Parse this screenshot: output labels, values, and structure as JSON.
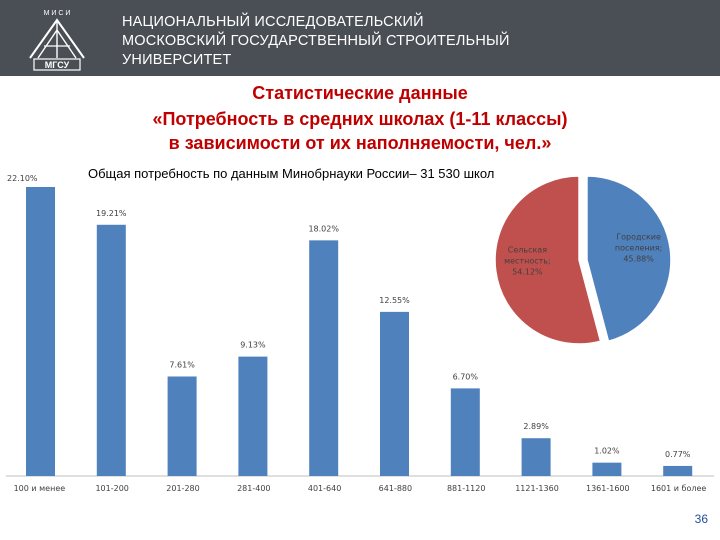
{
  "header": {
    "lines": [
      "НАЦИОНАЛЬНЫЙ ИССЛЕДОВАТЕЛЬСКИЙ",
      "МОСКОВСКИЙ ГОСУДАРСТВЕННЫЙ СТРОИТЕЛЬНЫЙ",
      "УНИВЕРСИТЕТ"
    ],
    "logo_letters": "М И С И",
    "logo_text": "МГСУ"
  },
  "title": {
    "line1": "Статистические данные",
    "line2": "«Потребность в средних школах (1-11 классы)",
    "line3": "в зависимости от их наполняемости, чел.»"
  },
  "subtitle": "Общая потребность по данным Минобрнауки России– 31 530 школ",
  "page_number": "36",
  "colors": {
    "header_bg": "#4a4f55",
    "title": "#c00000",
    "bar": "#4f81bd",
    "pie_urban": "#4f81bd",
    "pie_rural": "#c0504d"
  },
  "chart_data": [
    {
      "type": "bar",
      "categories": [
        "100 и менее",
        "101-200",
        "201-280",
        "281-400",
        "401-640",
        "641-880",
        "881-1120",
        "1121-1360",
        "1361-1600",
        "1601 и более"
      ],
      "values": [
        22.1,
        19.21,
        7.61,
        9.13,
        18.02,
        12.55,
        6.7,
        2.89,
        1.02,
        0.77
      ],
      "value_labels": [
        "22.10%",
        "19.21%",
        "7.61%",
        "9.13%",
        "18.02%",
        "12.55%",
        "6.70%",
        "2.89%",
        "1.02%",
        "0.77%"
      ],
      "ylim": [
        0,
        22.1
      ],
      "grid": false,
      "legend": "none"
    },
    {
      "type": "pie",
      "slices": [
        {
          "label": "Городские поселения;",
          "value": 45.88,
          "value_label": "45.88%"
        },
        {
          "label": "Сельская местность;",
          "value": 54.12,
          "value_label": "54.12%"
        }
      ]
    }
  ]
}
